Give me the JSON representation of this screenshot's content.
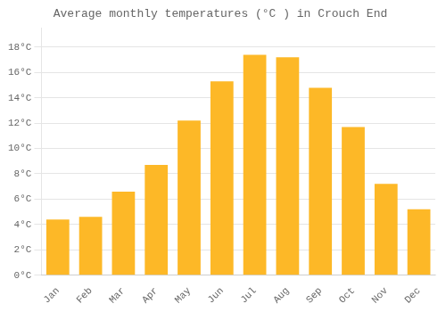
{
  "chart_data": {
    "type": "bar",
    "title": "Average monthly temperatures (°C ) in Crouch End",
    "categories": [
      "Jan",
      "Feb",
      "Mar",
      "Apr",
      "May",
      "Jun",
      "Jul",
      "Aug",
      "Sep",
      "Oct",
      "Nov",
      "Dec"
    ],
    "values": [
      4.4,
      4.6,
      6.6,
      8.7,
      12.2,
      15.3,
      17.4,
      17.2,
      14.8,
      11.7,
      7.2,
      5.2
    ],
    "color": "#FDB827",
    "ylim": [
      0,
      19.5
    ],
    "yticks": [
      {
        "value": 0,
        "label": "0°C"
      },
      {
        "value": 2,
        "label": "2°C"
      },
      {
        "value": 4,
        "label": "4°C"
      },
      {
        "value": 6,
        "label": "6°C"
      },
      {
        "value": 8,
        "label": "8°C"
      },
      {
        "value": 10,
        "label": "10°C"
      },
      {
        "value": 12,
        "label": "12°C"
      },
      {
        "value": 14,
        "label": "14°C"
      },
      {
        "value": 16,
        "label": "16°C"
      },
      {
        "value": 18,
        "label": "18°C"
      }
    ],
    "grid": true
  }
}
